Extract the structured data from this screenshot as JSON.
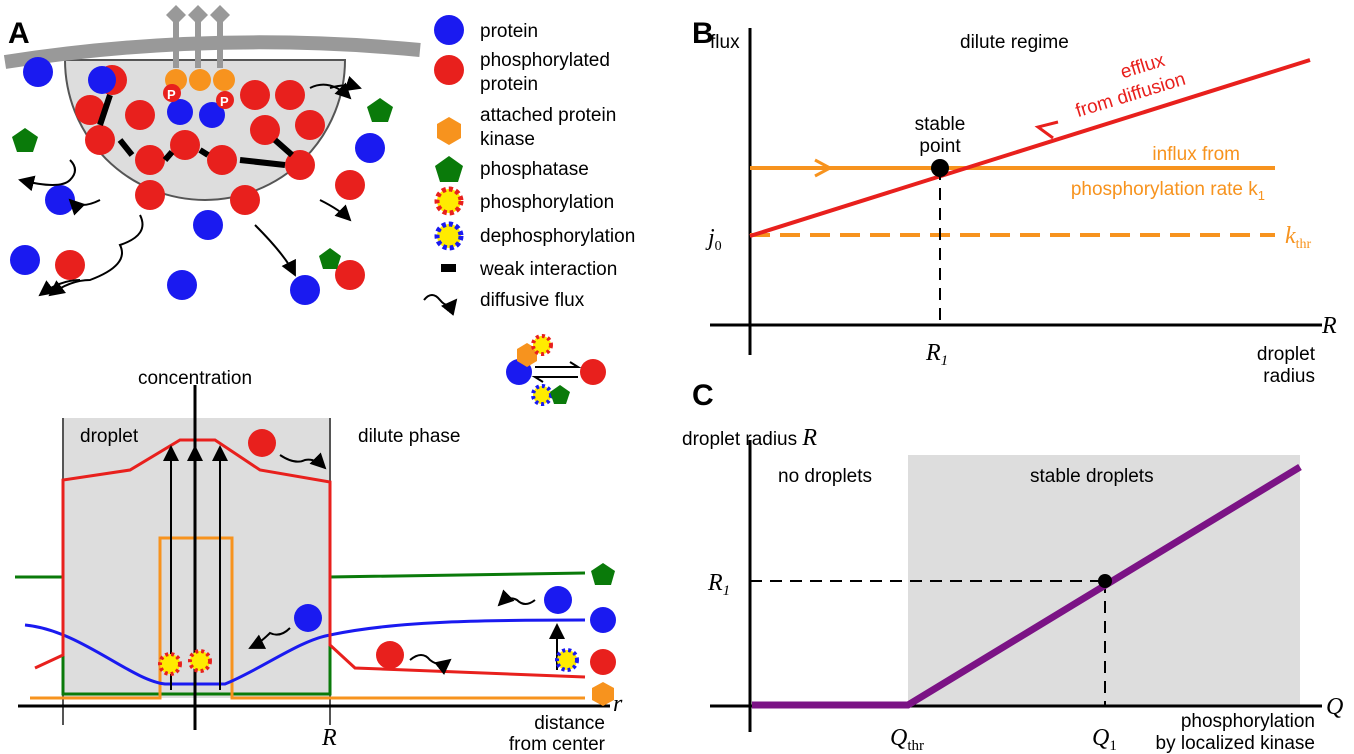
{
  "panel_a": {
    "label": "A",
    "legend": [
      [
        "protein"
      ],
      [
        "phosphorylated",
        "protein"
      ],
      [
        "attached protein",
        "kinase"
      ],
      [
        "phosphatase"
      ],
      [
        "phosphorylation"
      ],
      [
        "dephosphorylation"
      ],
      [
        "weak interaction"
      ],
      [
        "diffusive flux"
      ]
    ],
    "p_symbol": "P",
    "profile": {
      "y_label": "concentration",
      "droplet": "droplet",
      "dilute": "dilute phase",
      "x_symbol": "r",
      "x_label": [
        "distance",
        "from center"
      ],
      "radius": "R"
    }
  },
  "panel_b": {
    "label": "B",
    "y_label": "flux",
    "regime": "dilute regime",
    "efflux": [
      "efflux",
      "from diffusion"
    ],
    "stable": [
      "stable",
      "point"
    ],
    "influx": [
      "influx from",
      "phosphorylation rate k",
      "1"
    ],
    "j0": [
      "j",
      "0"
    ],
    "kthr": [
      "k",
      "thr"
    ],
    "x_symbol": "R",
    "r1": [
      "R",
      "1"
    ],
    "x_label": [
      "droplet",
      "radius"
    ]
  },
  "panel_c": {
    "label": "C",
    "y_label": [
      "droplet radius ",
      "R"
    ],
    "no_droplets": "no droplets",
    "stable_droplets": "stable droplets",
    "r1": [
      "R",
      "1"
    ],
    "qthr": [
      "Q",
      "thr"
    ],
    "q1": [
      "Q",
      "1"
    ],
    "x_symbol": "Q",
    "x_label": [
      "phosphorylation",
      "by localized kinase"
    ]
  }
}
